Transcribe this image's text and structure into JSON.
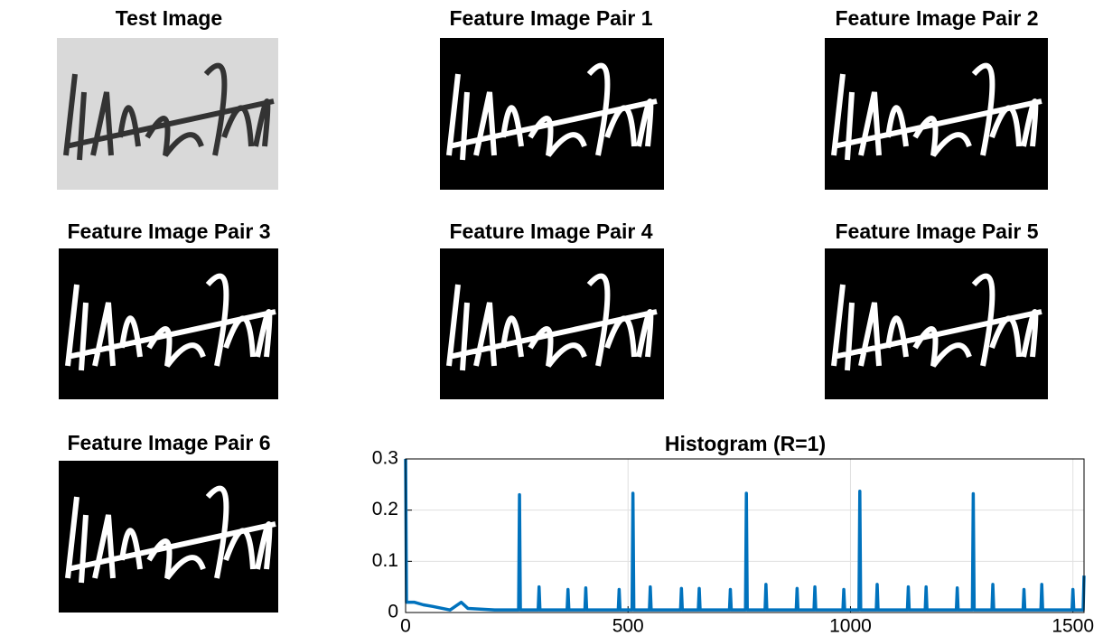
{
  "panels": [
    {
      "title": "Test Image"
    },
    {
      "title": "Feature Image Pair 1"
    },
    {
      "title": "Feature Image Pair 2"
    },
    {
      "title": "Feature Image Pair 3"
    },
    {
      "title": "Feature Image Pair 4"
    },
    {
      "title": "Feature Image Pair 5"
    },
    {
      "title": "Feature Image Pair 6"
    }
  ],
  "chart_data": {
    "type": "line",
    "title": "Histogram (R=1)",
    "color": "#0072bd",
    "grid": true,
    "xlim": [
      0,
      1525
    ],
    "xticks": [
      0,
      500,
      1000,
      1500
    ],
    "ylim": [
      0,
      0.3
    ],
    "yticks": [
      0,
      0.1,
      0.2,
      0.3
    ],
    "x": [
      0,
      2,
      20,
      40,
      60,
      100,
      125,
      140,
      200,
      254,
      256,
      258,
      298,
      300,
      302,
      363,
      365,
      367,
      403,
      405,
      407,
      478,
      480,
      482,
      509,
      511,
      513,
      548,
      550,
      552,
      618,
      620,
      622,
      658,
      660,
      662,
      728,
      730,
      732,
      764,
      766,
      768,
      808,
      810,
      812,
      878,
      880,
      882,
      918,
      920,
      922,
      983,
      985,
      987,
      1019,
      1021,
      1023,
      1058,
      1060,
      1062,
      1128,
      1130,
      1132,
      1168,
      1170,
      1172,
      1238,
      1240,
      1242,
      1274,
      1276,
      1278,
      1318,
      1320,
      1322,
      1388,
      1390,
      1392,
      1428,
      1430,
      1432,
      1498,
      1500,
      1502,
      1523,
      1525
    ],
    "values": [
      0.3,
      0.02,
      0.02,
      0.015,
      0.012,
      0.005,
      0.02,
      0.008,
      0.005,
      0.005,
      0.23,
      0.005,
      0.005,
      0.05,
      0.005,
      0.005,
      0.045,
      0.005,
      0.005,
      0.048,
      0.005,
      0.005,
      0.045,
      0.005,
      0.005,
      0.233,
      0.005,
      0.005,
      0.05,
      0.005,
      0.005,
      0.047,
      0.005,
      0.005,
      0.047,
      0.005,
      0.005,
      0.045,
      0.005,
      0.005,
      0.233,
      0.005,
      0.005,
      0.055,
      0.005,
      0.005,
      0.047,
      0.005,
      0.005,
      0.05,
      0.005,
      0.005,
      0.045,
      0.005,
      0.005,
      0.237,
      0.005,
      0.005,
      0.055,
      0.005,
      0.005,
      0.05,
      0.005,
      0.005,
      0.05,
      0.005,
      0.005,
      0.048,
      0.005,
      0.005,
      0.232,
      0.005,
      0.005,
      0.055,
      0.005,
      0.005,
      0.045,
      0.005,
      0.005,
      0.055,
      0.005,
      0.005,
      0.045,
      0.005,
      0.005,
      0.072
    ]
  }
}
